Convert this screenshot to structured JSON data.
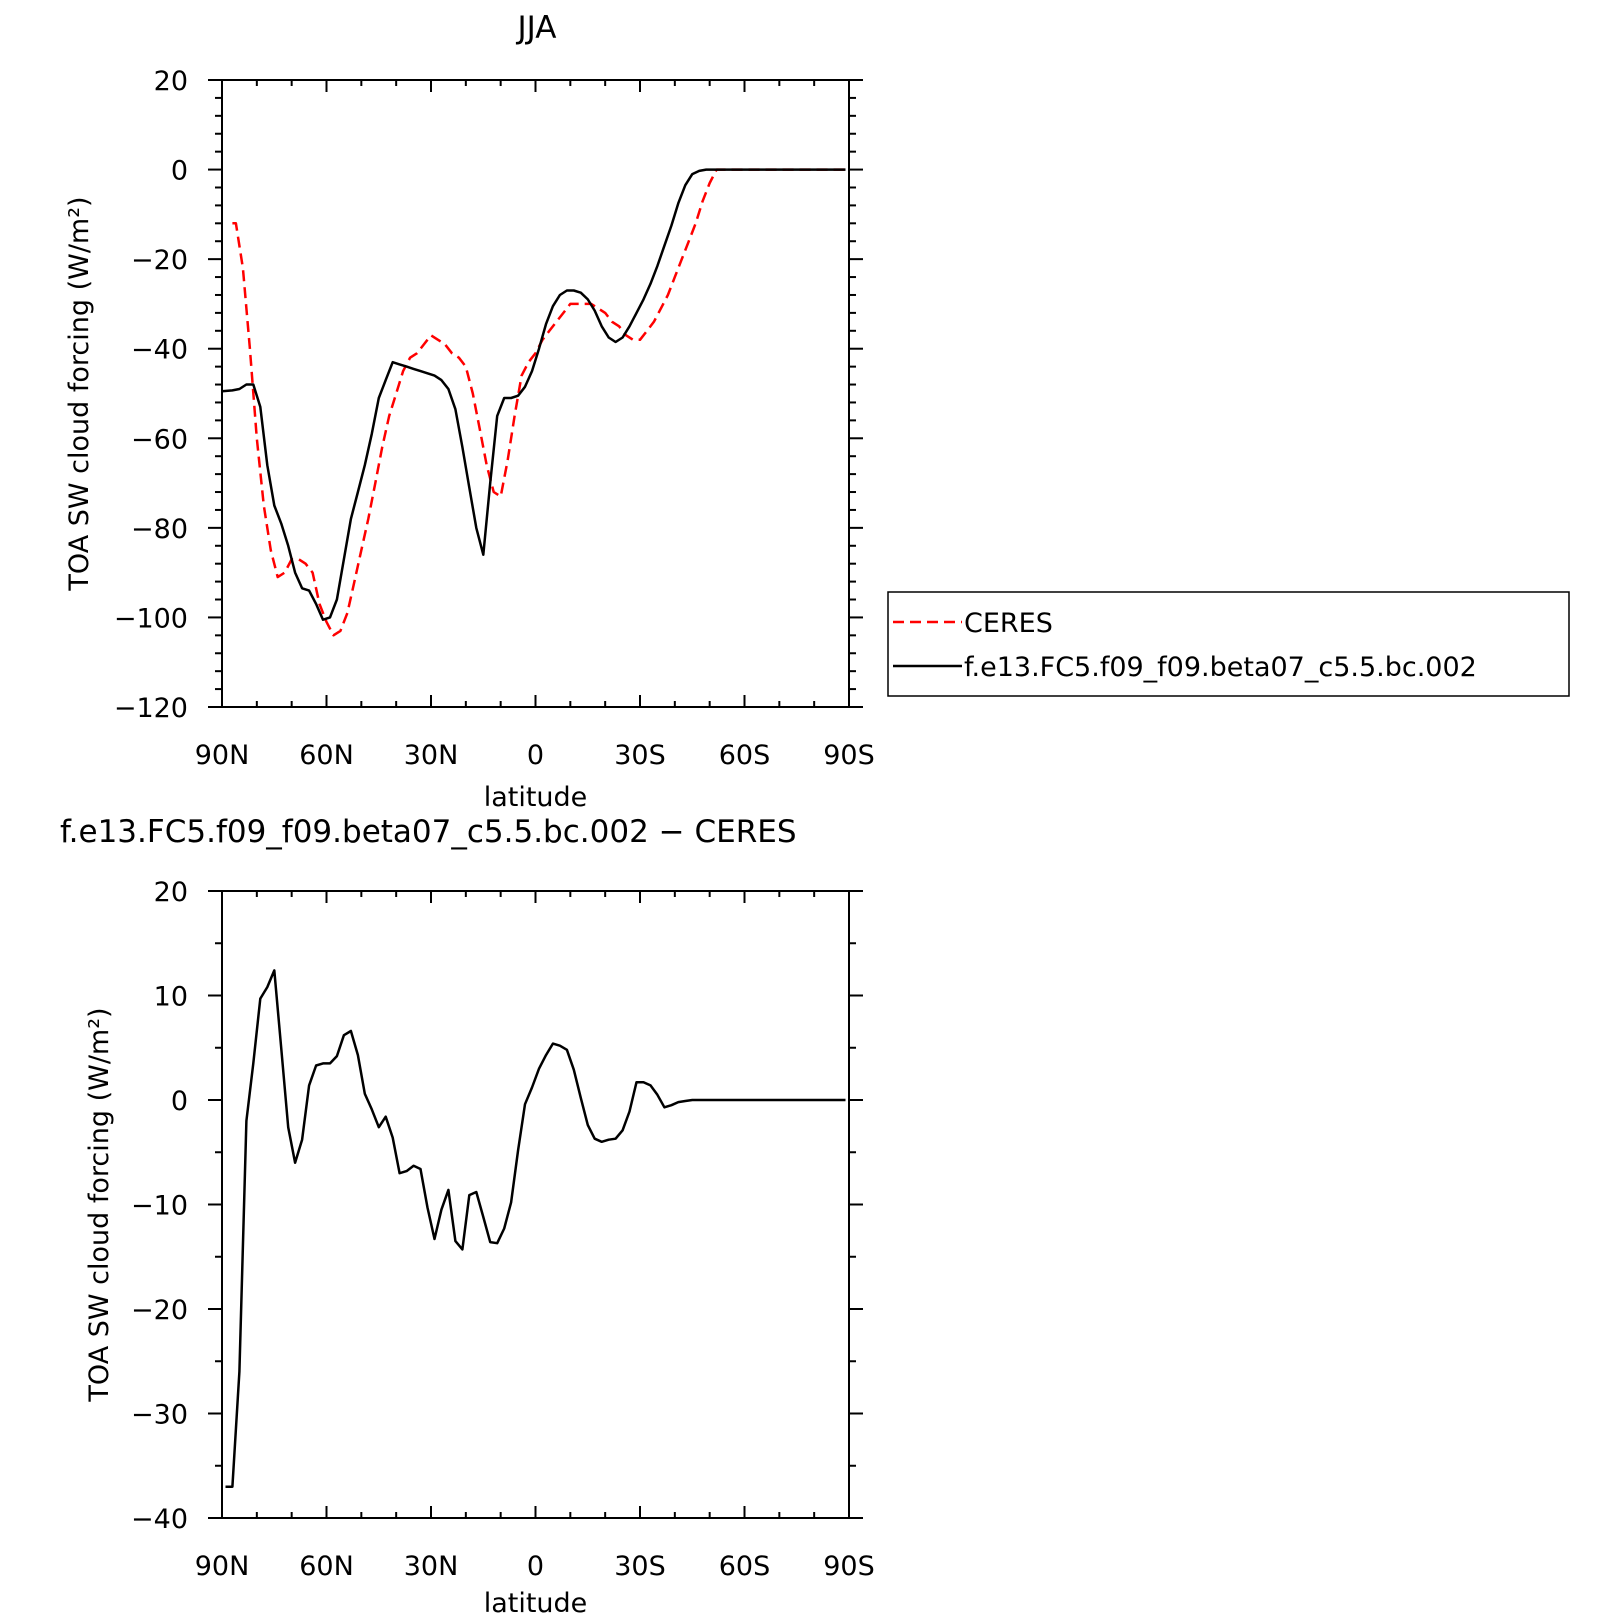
{
  "chart_data": [
    {
      "type": "line",
      "title": "JJA",
      "xlabel": "latitude",
      "ylabel": "TOA SW cloud forcing (W/m²)",
      "xlim": [
        90,
        -90
      ],
      "ylim": [
        -120,
        20
      ],
      "x_ticks": [
        {
          "value": 90,
          "label": "90N"
        },
        {
          "value": 60,
          "label": "60N"
        },
        {
          "value": 30,
          "label": "30N"
        },
        {
          "value": 0,
          "label": "0"
        },
        {
          "value": -30,
          "label": "30S"
        },
        {
          "value": -60,
          "label": "60S"
        },
        {
          "value": -90,
          "label": "90S"
        }
      ],
      "y_ticks": [
        {
          "value": 20,
          "label": "20"
        },
        {
          "value": 0,
          "label": "0"
        },
        {
          "value": -20,
          "label": "−20"
        },
        {
          "value": -40,
          "label": "−40"
        },
        {
          "value": -60,
          "label": "−60"
        },
        {
          "value": -80,
          "label": "−80"
        },
        {
          "value": -100,
          "label": "−100"
        },
        {
          "value": -120,
          "label": "−120"
        }
      ],
      "legend_position": "right",
      "series": [
        {
          "name": "CERES",
          "color": "#ff0000",
          "dash": true,
          "x": [
            87,
            86,
            84,
            82,
            80,
            78,
            76,
            74,
            72,
            70,
            68,
            66,
            64,
            62,
            60,
            58,
            56,
            54,
            52,
            50,
            48,
            46,
            44,
            42,
            40,
            38,
            36,
            34,
            32,
            30,
            28,
            26,
            24,
            22,
            20,
            18,
            16,
            14,
            12,
            10,
            8,
            6,
            4,
            2,
            0,
            -2,
            -4,
            -6,
            -8,
            -10,
            -12,
            -14,
            -16,
            -18,
            -20,
            -22,
            -24,
            -26,
            -28,
            -30,
            -32,
            -34,
            -36,
            -38,
            -40,
            -42,
            -44,
            -46,
            -48,
            -50,
            -52,
            -54,
            -56,
            -58,
            -60,
            -62,
            -64,
            -66,
            -68,
            -70,
            -72,
            -74,
            -76,
            -78,
            -80,
            -82,
            -84,
            -86,
            -88,
            -90
          ],
          "y": [
            -12,
            -12,
            -22,
            -40,
            -60,
            -75,
            -85,
            -91,
            -90,
            -87,
            -87,
            -88,
            -90,
            -97,
            -101,
            -104,
            -103,
            -99,
            -92,
            -85,
            -78,
            -70,
            -62,
            -55,
            -50,
            -45,
            -42,
            -41,
            -39,
            -37,
            -38,
            -39,
            -41,
            -42,
            -44,
            -50,
            -58,
            -66,
            -72,
            -73,
            -65,
            -55,
            -46,
            -43,
            -41,
            -38,
            -36,
            -34,
            -32,
            -30,
            -30,
            -30,
            -30,
            -31,
            -32,
            -34,
            -35,
            -37,
            -38,
            -38,
            -36,
            -34,
            -31,
            -28,
            -24,
            -20,
            -16,
            -12,
            -7,
            -3,
            0,
            0,
            0,
            0,
            0,
            0,
            0,
            0,
            0,
            0,
            0,
            0,
            0,
            0,
            0,
            0,
            0,
            0,
            0,
            0
          ]
        },
        {
          "name": "f.e13.FC5.f09_f09.beta07_c5.5.bc.002",
          "color": "#000000",
          "dash": false,
          "x": [
            90,
            87,
            85,
            83,
            81,
            79,
            77,
            75,
            73,
            71,
            69,
            67,
            65,
            63,
            61,
            59,
            57,
            55,
            53,
            51,
            49,
            47,
            45,
            43,
            41,
            39,
            37,
            35,
            33,
            31,
            29,
            27,
            25,
            23,
            21,
            19,
            17,
            15,
            13,
            11,
            9,
            7,
            5,
            3,
            1,
            -1,
            -3,
            -5,
            -7,
            -9,
            -11,
            -13,
            -15,
            -17,
            -19,
            -21,
            -23,
            -25,
            -27,
            -29,
            -31,
            -33,
            -35,
            -37,
            -39,
            -41,
            -43,
            -45,
            -47,
            -49,
            -51,
            -53,
            -55,
            -57,
            -59,
            -61,
            -63,
            -65,
            -67,
            -69,
            -71,
            -73,
            -75,
            -77,
            -79,
            -81,
            -83,
            -85,
            -87,
            -89
          ],
          "y": [
            -49.5,
            -49.3,
            -49.0,
            -48.0,
            -48.0,
            -53.0,
            -66.0,
            -75.0,
            -79.0,
            -84.0,
            -90.0,
            -93.5,
            -94.0,
            -97.0,
            -100.5,
            -100.0,
            -96.0,
            -87.0,
            -78.0,
            -72.0,
            -66.0,
            -59.0,
            -51.0,
            -47.0,
            -43.0,
            -43.5,
            -44.0,
            -44.5,
            -45.0,
            -45.5,
            -46.0,
            -47.0,
            -49.0,
            -53.5,
            -62.0,
            -71.0,
            -80.0,
            -86.0,
            -70.0,
            -55.0,
            -51.0,
            -51.0,
            -50.5,
            -48.5,
            -45.0,
            -40.0,
            -34.5,
            -30.5,
            -28.0,
            -27.0,
            -27.0,
            -27.5,
            -29.0,
            -31.5,
            -35.0,
            -37.5,
            -38.5,
            -37.5,
            -35.0,
            -32.0,
            -29.0,
            -25.5,
            -21.5,
            -17.0,
            -12.5,
            -7.5,
            -3.5,
            -1.0,
            -0.3,
            0,
            0,
            0,
            0,
            0,
            0,
            0,
            0,
            0,
            0,
            0,
            0,
            0,
            0,
            0,
            0,
            0,
            0,
            0,
            0,
            0
          ]
        }
      ]
    },
    {
      "type": "line",
      "title": "f.e13.FC5.f09_f09.beta07_c5.5.bc.002 − CERES",
      "xlabel": "latitude",
      "ylabel": "TOA SW cloud forcing (W/m²)",
      "xlim": [
        90,
        -90
      ],
      "ylim": [
        -40,
        20
      ],
      "x_ticks": [
        {
          "value": 90,
          "label": "90N"
        },
        {
          "value": 60,
          "label": "60N"
        },
        {
          "value": 30,
          "label": "30N"
        },
        {
          "value": 0,
          "label": "0"
        },
        {
          "value": -30,
          "label": "30S"
        },
        {
          "value": -60,
          "label": "60S"
        },
        {
          "value": -90,
          "label": "90S"
        }
      ],
      "y_ticks": [
        {
          "value": 20,
          "label": "20"
        },
        {
          "value": 10,
          "label": "10"
        },
        {
          "value": 0,
          "label": "0"
        },
        {
          "value": -10,
          "label": "−10"
        },
        {
          "value": -20,
          "label": "−20"
        },
        {
          "value": -30,
          "label": "−30"
        },
        {
          "value": -40,
          "label": "−40"
        }
      ],
      "series": [
        {
          "color": "#000000",
          "dash": false,
          "x": [
            89,
            87,
            85,
            83,
            81,
            79,
            77,
            75,
            73,
            71,
            69,
            67,
            65,
            63,
            61,
            59,
            57,
            55,
            53,
            51,
            49,
            47,
            45,
            43,
            41,
            39,
            37,
            35,
            33,
            31,
            29,
            27,
            25,
            23,
            21,
            19,
            17,
            15,
            13,
            11,
            9,
            7,
            5,
            3,
            1,
            -1,
            -3,
            -5,
            -7,
            -9,
            -11,
            -13,
            -15,
            -17,
            -19,
            -21,
            -23,
            -25,
            -27,
            -29,
            -31,
            -33,
            -35,
            -37,
            -39,
            -41,
            -43,
            -45,
            -47,
            -49,
            -51,
            -53,
            -55,
            -57,
            -59,
            -61,
            -63,
            -65,
            -67,
            -69,
            -71,
            -73,
            -75,
            -77,
            -79,
            -81,
            -83,
            -85,
            -87,
            -89
          ],
          "y": [
            -37.0,
            -37.0,
            -26.0,
            -2.0,
            3.5,
            9.7,
            10.8,
            12.4,
            5.0,
            -2.6,
            -6.0,
            -3.8,
            1.4,
            3.3,
            3.5,
            3.5,
            4.2,
            6.2,
            6.6,
            4.3,
            0.6,
            -0.9,
            -2.6,
            -1.6,
            -3.6,
            -7.0,
            -6.8,
            -6.3,
            -6.6,
            -10.3,
            -13.3,
            -10.5,
            -8.6,
            -13.5,
            -14.3,
            -9.1,
            -8.8,
            -11.2,
            -13.6,
            -13.7,
            -12.3,
            -9.8,
            -4.8,
            -0.4,
            1.2,
            3.0,
            4.3,
            5.4,
            5.2,
            4.8,
            2.9,
            0.2,
            -2.4,
            -3.7,
            -4.0,
            -3.8,
            -3.7,
            -2.9,
            -1.1,
            1.7,
            1.7,
            1.4,
            0.5,
            -0.7,
            -0.5,
            -0.2,
            -0.1,
            0,
            0,
            0,
            0,
            0,
            0,
            0,
            0,
            0,
            0,
            0,
            0,
            0,
            0,
            0,
            0,
            0,
            0,
            0,
            0,
            0,
            0,
            0
          ]
        }
      ]
    }
  ]
}
